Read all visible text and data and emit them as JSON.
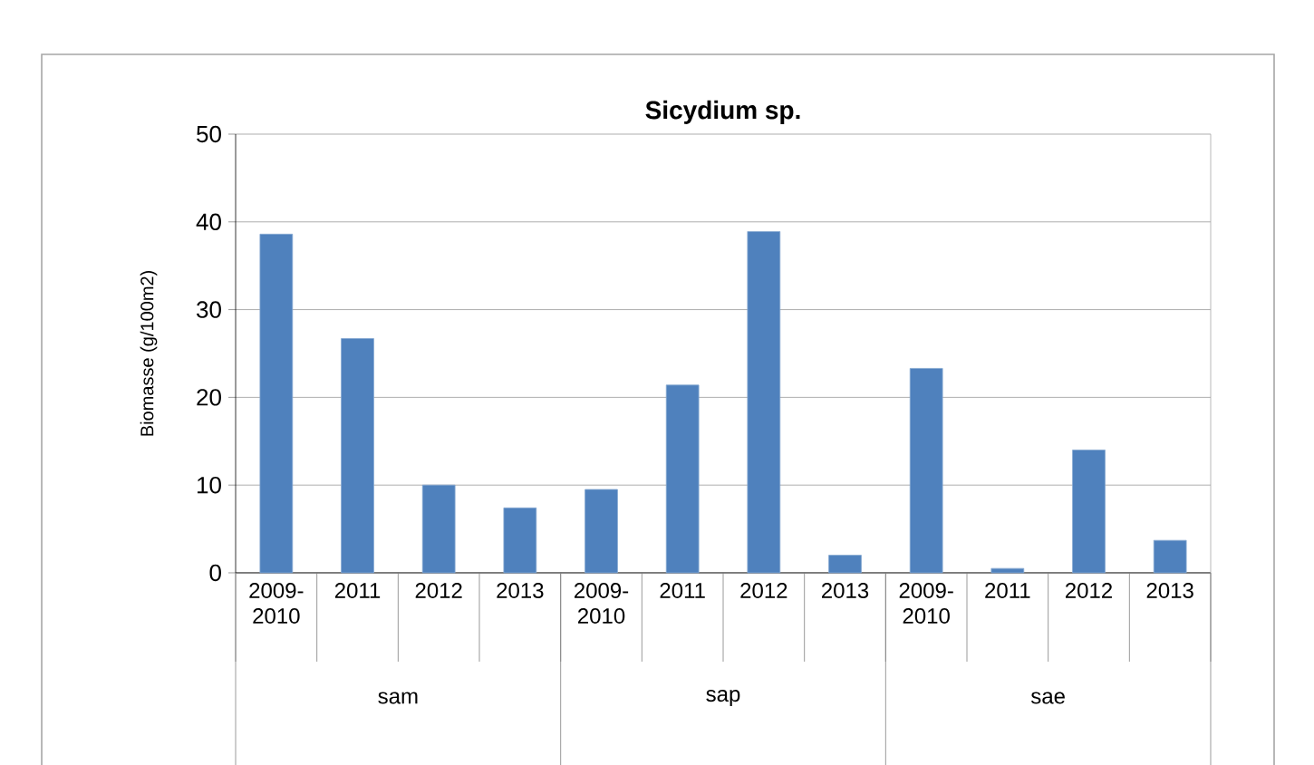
{
  "chart_data": {
    "type": "bar",
    "title": "Sicydium sp.",
    "ylabel": "Biomasse (g/100m2)",
    "categories": [
      "2009-2010",
      "2011",
      "2012",
      "2013",
      "2009-2010",
      "2011",
      "2012",
      "2013",
      "2009-2010",
      "2011",
      "2012",
      "2013"
    ],
    "values": [
      38.6,
      26.7,
      10.0,
      7.4,
      9.5,
      21.4,
      38.9,
      2.0,
      23.3,
      0.5,
      14.0,
      3.7
    ],
    "color": "#4f81bd",
    "ylim": [
      0,
      50
    ],
    "yticks": [
      0,
      10,
      20,
      30,
      40,
      50
    ],
    "grid": "y",
    "annotations": [
      "sam",
      "sap",
      "sae"
    ]
  }
}
